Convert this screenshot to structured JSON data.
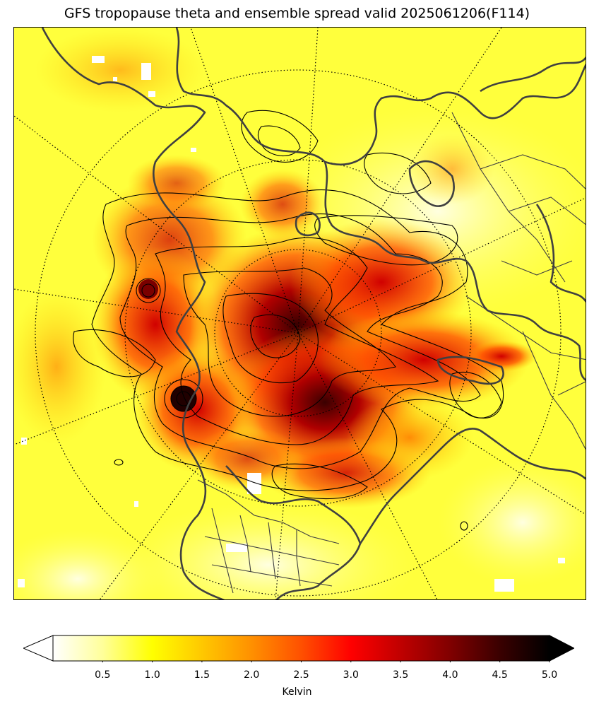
{
  "title": "GFS tropopause theta and ensemble spread valid 2025061206(F114)",
  "map": {
    "projection": "north-polar-stereographic",
    "field": "ensemble spread (shaded)",
    "contours": "tropopause theta (black lines)",
    "coastline_color": "#404040",
    "contour_color": "#000000"
  },
  "colorbar": {
    "colormap": "hot_r",
    "min": 0,
    "max": 5.0,
    "extend": "both",
    "ticks": [
      "0.5",
      "1.0",
      "1.5",
      "2.0",
      "2.5",
      "3.0",
      "3.5",
      "4.0",
      "4.5",
      "5.0"
    ],
    "label": "Kelvin",
    "colors": [
      "#ffffff",
      "#ffff9a",
      "#ffff00",
      "#ffc800",
      "#ff9000",
      "#ff5000",
      "#ff0000",
      "#c00000",
      "#800000",
      "#3a0000",
      "#000000"
    ]
  }
}
